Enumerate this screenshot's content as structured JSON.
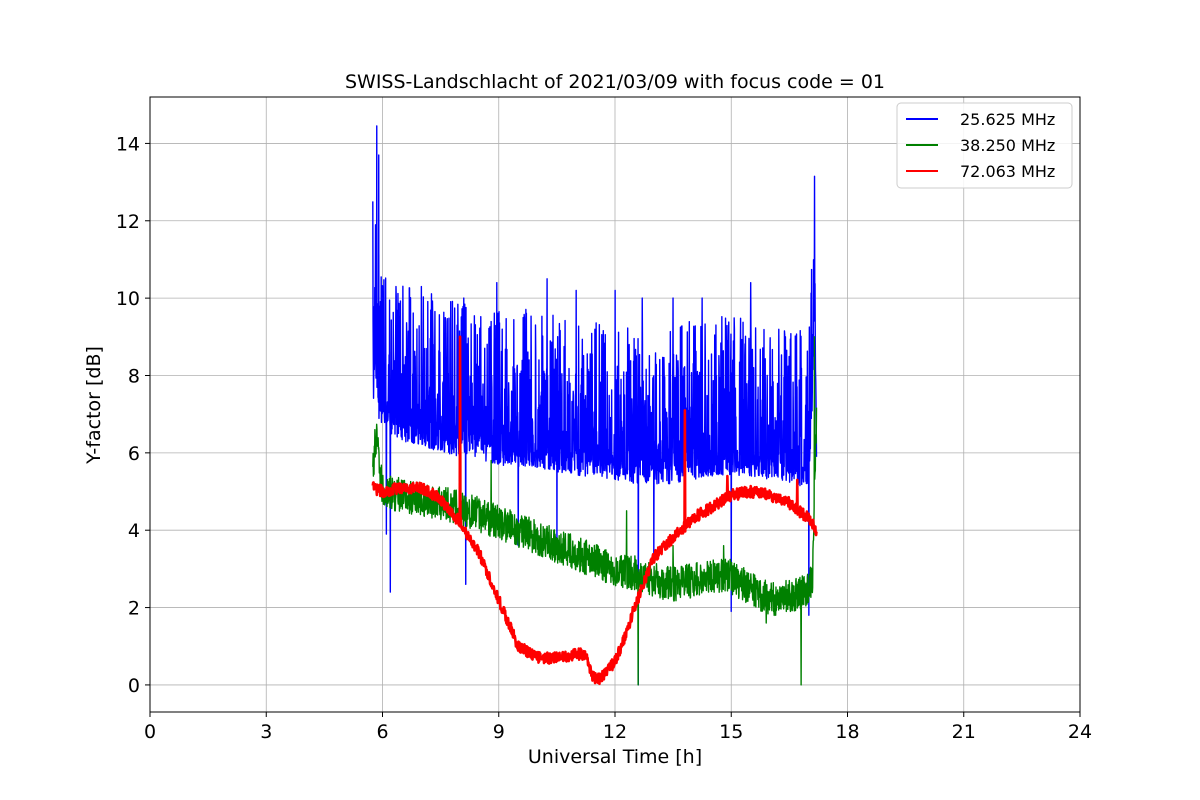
{
  "chart_data": {
    "type": "line",
    "title": "SWISS-Landschlacht of 2021/03/09 with focus code = 01",
    "xlabel": "Universal Time [h]",
    "ylabel": "Y-factor [dB]",
    "xlim": [
      0,
      24
    ],
    "ylim": [
      -0.7,
      15.2
    ],
    "xticks": [
      0,
      3,
      6,
      9,
      12,
      15,
      18,
      21,
      24
    ],
    "yticks": [
      0,
      2,
      4,
      6,
      8,
      10,
      12,
      14
    ],
    "grid": true,
    "legend_position": "top-right",
    "series": [
      {
        "name": "25.625 MHz",
        "color": "#0000ff",
        "x": [
          5.75,
          5.8,
          5.85,
          5.9,
          6.0,
          6.2,
          6.5,
          7.0,
          7.5,
          8.0,
          8.5,
          9.0,
          9.5,
          10.0,
          10.5,
          11.0,
          11.5,
          12.0,
          12.5,
          13.0,
          13.5,
          14.0,
          14.5,
          15.0,
          15.5,
          16.0,
          16.5,
          17.0,
          17.1,
          17.15,
          17.2
        ],
        "y": [
          7.2,
          9.0,
          8.0,
          7.5,
          7.3,
          7.1,
          6.9,
          6.8,
          6.6,
          6.5,
          6.4,
          6.3,
          6.2,
          6.2,
          6.1,
          6.0,
          6.0,
          5.9,
          5.8,
          5.8,
          5.8,
          5.9,
          6.0,
          6.0,
          6.0,
          5.9,
          5.8,
          5.7,
          8.0,
          10.5,
          6.0
        ],
        "peaks": [
          [
            5.75,
            12.5
          ],
          [
            5.85,
            14.45
          ],
          [
            5.9,
            13.7
          ],
          [
            6.35,
            10.3
          ],
          [
            7.0,
            10.3
          ],
          [
            8.1,
            10.0
          ],
          [
            8.95,
            10.4
          ],
          [
            9.5,
            9.9
          ],
          [
            10.25,
            10.5
          ],
          [
            11.0,
            10.2
          ],
          [
            12.0,
            10.2
          ],
          [
            12.7,
            10.0
          ],
          [
            13.5,
            10.0
          ],
          [
            14.25,
            10.0
          ],
          [
            15.5,
            10.4
          ],
          [
            16.4,
            9.0
          ],
          [
            17.15,
            13.15
          ]
        ],
        "troughs": [
          [
            6.1,
            3.9
          ],
          [
            6.2,
            2.4
          ],
          [
            8.15,
            2.6
          ],
          [
            9.5,
            3.6
          ],
          [
            10.5,
            3.5
          ],
          [
            12.6,
            0.0
          ],
          [
            13.0,
            3.2
          ],
          [
            15.0,
            1.9
          ],
          [
            17.0,
            1.8
          ]
        ],
        "noise_amplitude": 1.6
      },
      {
        "name": "38.250 MHz",
        "color": "#008000",
        "x": [
          5.75,
          5.85,
          6.0,
          6.5,
          7.0,
          7.5,
          8.0,
          8.5,
          9.0,
          9.5,
          10.0,
          10.5,
          11.0,
          11.5,
          12.0,
          12.5,
          13.0,
          13.5,
          14.0,
          14.5,
          15.0,
          15.5,
          16.0,
          16.5,
          17.0,
          17.1,
          17.2
        ],
        "y": [
          5.5,
          6.3,
          5.0,
          4.9,
          4.8,
          4.7,
          4.6,
          4.4,
          4.2,
          4.0,
          3.8,
          3.6,
          3.4,
          3.2,
          3.0,
          2.9,
          2.7,
          2.6,
          2.7,
          2.8,
          2.8,
          2.5,
          2.2,
          2.3,
          2.5,
          2.8,
          7.0
        ],
        "peaks": [
          [
            5.8,
            6.6
          ],
          [
            8.8,
            5.8
          ],
          [
            12.3,
            4.5
          ],
          [
            13.5,
            3.6
          ],
          [
            14.8,
            3.6
          ],
          [
            17.15,
            9.0
          ]
        ],
        "troughs": [
          [
            12.6,
            0.0
          ],
          [
            16.8,
            0.0
          ],
          [
            15.9,
            1.6
          ]
        ],
        "noise_amplitude": 0.45
      },
      {
        "name": "72.063 MHz",
        "color": "#ff0000",
        "x": [
          5.75,
          6.0,
          6.5,
          7.0,
          7.5,
          8.0,
          8.5,
          9.0,
          9.25,
          9.5,
          10.0,
          10.5,
          11.0,
          11.25,
          11.4,
          11.6,
          12.0,
          12.25,
          12.5,
          13.0,
          13.5,
          14.0,
          14.5,
          15.0,
          15.5,
          16.0,
          16.5,
          17.0,
          17.2
        ],
        "y": [
          5.1,
          5.0,
          5.1,
          5.1,
          4.8,
          4.2,
          3.4,
          2.2,
          1.6,
          1.0,
          0.7,
          0.7,
          0.8,
          0.8,
          0.2,
          0.15,
          0.6,
          1.2,
          2.0,
          3.3,
          3.8,
          4.3,
          4.6,
          4.9,
          5.0,
          4.9,
          4.7,
          4.3,
          4.0
        ],
        "peaks": [
          [
            8.0,
            9.0
          ],
          [
            13.8,
            7.1
          ],
          [
            14.9,
            5.4
          ],
          [
            16.7,
            5.3
          ]
        ],
        "troughs": [],
        "noise_amplitude": 0.15
      }
    ]
  }
}
